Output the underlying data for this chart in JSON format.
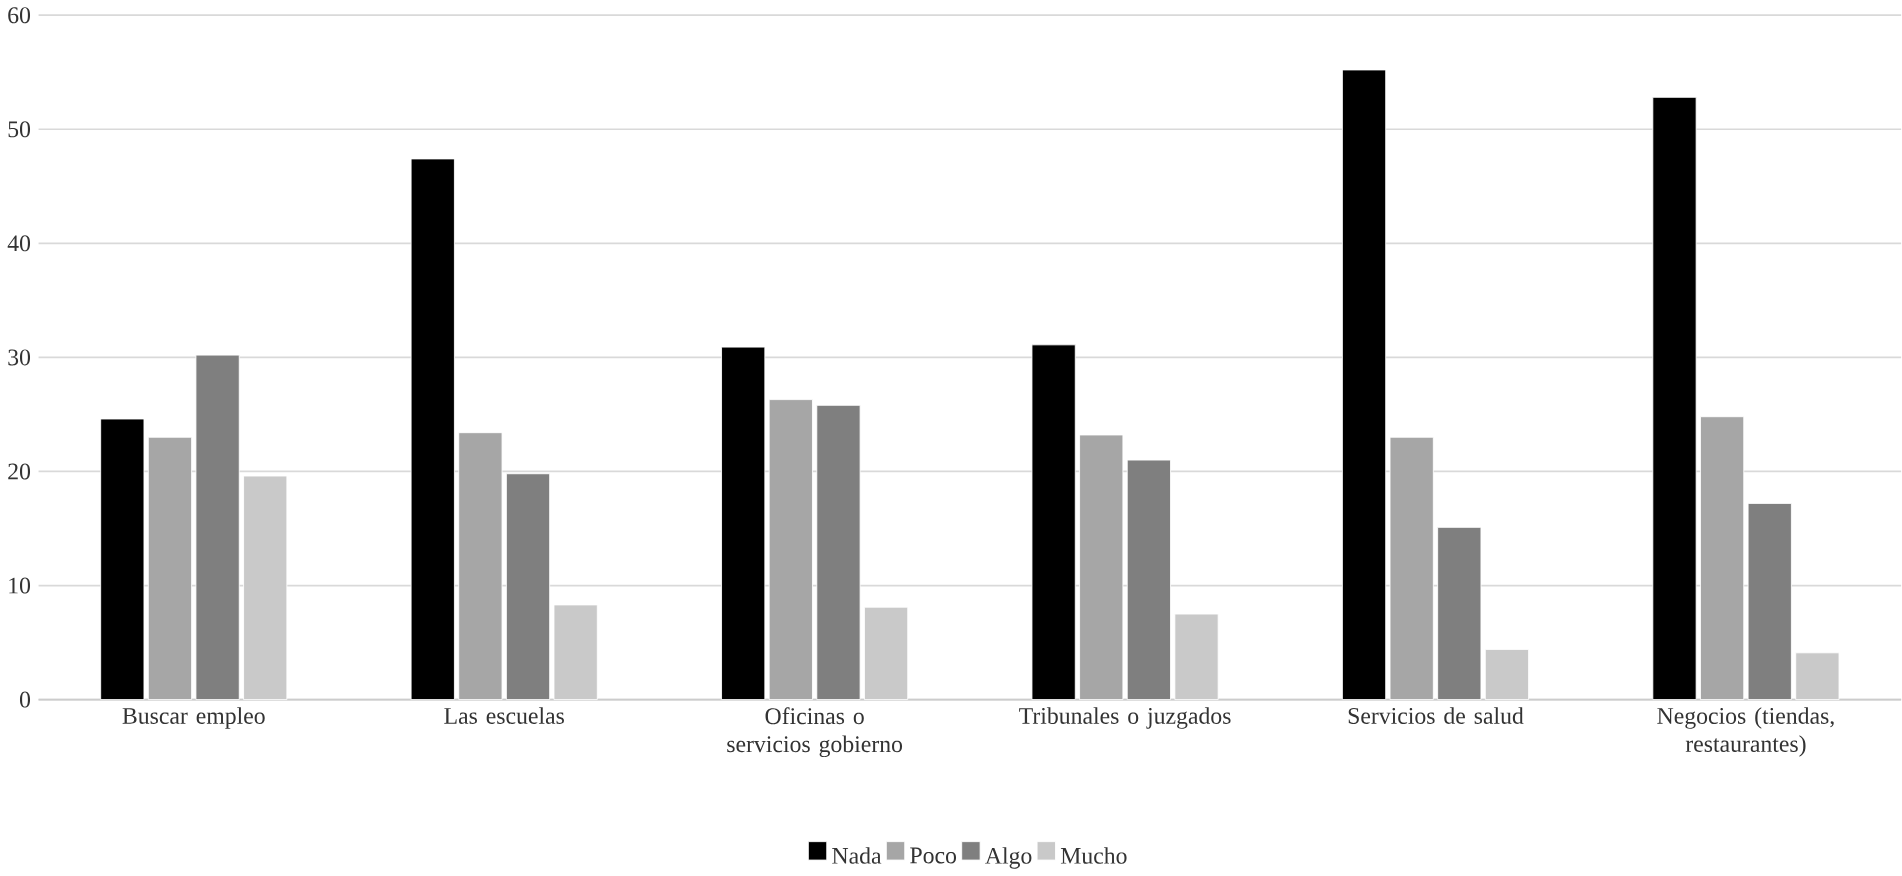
{
  "chart_data": {
    "type": "bar",
    "categories": [
      "Buscar empleo",
      "Las escuelas",
      "Oficinas o servicios gobierno",
      "Tribunales o juzgados",
      "Servicios de salud",
      "Negocios (tiendas, restaurantes)"
    ],
    "series": [
      {
        "name": "Nada",
        "color": "#000000",
        "values": [
          24.6,
          47.4,
          30.9,
          31.1,
          55.2,
          52.8
        ]
      },
      {
        "name": "Poco",
        "color": "#a6a6a6",
        "values": [
          23.0,
          23.4,
          26.3,
          23.2,
          23.0,
          24.8
        ]
      },
      {
        "name": "Algo",
        "color": "#7f7f7f",
        "values": [
          30.2,
          19.8,
          25.8,
          21.0,
          15.1,
          17.2
        ]
      },
      {
        "name": "Mucho",
        "color": "#c9c9c9",
        "values": [
          19.6,
          8.3,
          8.1,
          7.5,
          4.4,
          4.1
        ]
      }
    ],
    "ylim": [
      0,
      60
    ],
    "yticks": [
      0,
      10,
      20,
      30,
      40,
      50,
      60
    ],
    "grid": "y",
    "legend": "bottom"
  }
}
